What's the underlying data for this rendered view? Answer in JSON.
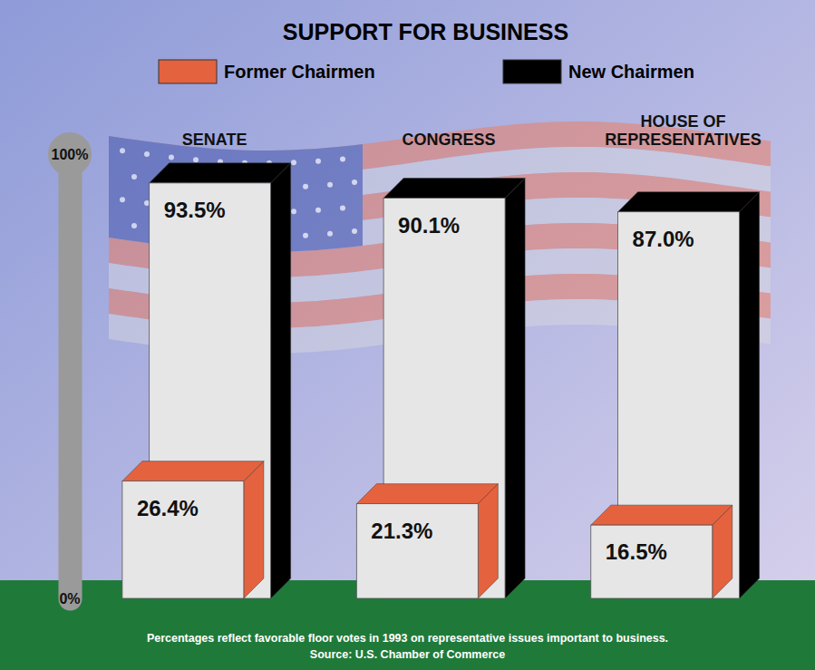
{
  "chart_data": {
    "type": "bar",
    "title": "SUPPORT FOR BUSINESS",
    "categories": [
      "SENATE",
      "CONGRESS",
      "HOUSE OF REPRESENTATIVES"
    ],
    "series": [
      {
        "name": "Former Chairmen",
        "color": "#e5623f",
        "values": [
          26.4,
          21.3,
          16.5
        ],
        "value_labels": [
          "26.4%",
          "21.3%",
          "16.5%"
        ]
      },
      {
        "name": "New Chairmen",
        "color": "#000000",
        "values": [
          93.5,
          90.1,
          87.0
        ],
        "value_labels": [
          "93.5%",
          "90.1%",
          "87.0%"
        ]
      }
    ],
    "ylim": [
      0,
      100
    ],
    "yticks": [
      {
        "value": 0,
        "label": "0%"
      },
      {
        "value": 100,
        "label": "100%"
      }
    ],
    "data_labels": true,
    "legend": "top",
    "grid": false,
    "annotations": [
      "Percentages reflect favorable floor votes in 1993 on representative issues important to business.",
      "Source: U.S. Chamber of Commerce"
    ]
  }
}
